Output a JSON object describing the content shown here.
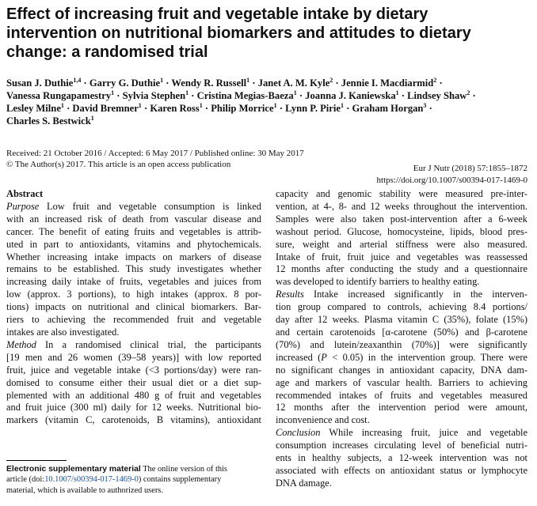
{
  "title": {
    "lines": [
      "Effect of increasing fruit and vegetable intake by dietary",
      "intervention on nutritional biomarkers and attitudes to dietary",
      "change: a randomised trial"
    ]
  },
  "authors": {
    "line1": {
      "a1": "Susan J. Duthie",
      "s1": "1,4",
      "a2": "Garry G. Duthie",
      "s2": "1",
      "a3": "Wendy R. Russell",
      "s3": "1",
      "a4": "Janet A. M. Kyle",
      "s4": "2",
      "a5": "Jennie I. Macdiarmid",
      "s5": "2"
    },
    "line2": {
      "a1": "Vanessa Rungapamestry",
      "s1": "1",
      "a2": "Sylvia Stephen",
      "s2": "1",
      "a3": "Cristina Megias-Baeza",
      "s3": "1",
      "a4": "Joanna J. Kaniewska",
      "s4": "1",
      "a5": "Lindsey Shaw",
      "s5": "2"
    },
    "line3": {
      "a1": "Lesley Milne",
      "s1": "1",
      "a2": "David Bremner",
      "s2": "1",
      "a3": "Karen Ross",
      "s3": "1",
      "a4": "Philip Morrice",
      "s4": "1",
      "a5": "Lynn P. Pirie",
      "s5": "1",
      "a6": "Graham Horgan",
      "s6": "3"
    },
    "line4": {
      "a1": "Charles S. Bestwick",
      "s1": "1"
    },
    "separator": "·"
  },
  "dates": {
    "line1": "Received: 21 October 2016 / Accepted: 6 May 2017 / Published online: 30 May 2017",
    "line2": "© The Author(s) 2017. This article is an open access publication"
  },
  "journal": {
    "citation": "Eur J Nutr (2018) 57:1855–1872",
    "doi": "https://doi.org/10.1007/s00394-017-1469-0"
  },
  "abstract": {
    "heading": "Abstract",
    "purpose_label": "Purpose",
    "method_label": "Method",
    "results_label": "Results",
    "conclusion_label": "Conclusion",
    "left_lines": [
      " Low fruit and vegetable consumption is linked",
      "with an increased risk of death from vascular disease and",
      "cancer. The benefit of eating fruits and vegetables is attrib-",
      "uted in part to antioxidants, vitamins and phytochemicals.",
      "Whether increasing intake impacts on markers of disease",
      "remains to be established. This study investigates whether",
      "increasing daily intake of fruits, vegetables and juices from",
      "low (approx. 3 portions), to high intakes (approx. 8 por-",
      "tions) impacts on nutritional and clinical biomarkers. Bar-",
      "riers to achieving the recommended fruit and vegetable",
      "intakes are also investigated."
    ],
    "method_lines": [
      " In a randomised clinical trial, the participants",
      "[19 men and 26 women (39–58 years)] with low reported",
      "fruit, juice and vegetable intake (<3 portions/day) were ran-",
      "domised to consume either their usual diet or a diet sup-",
      "plemented with an additional 480 g of fruit and vegetables",
      "and fruit juice (300 ml) daily for 12 weeks. Nutritional bio-",
      "markers (vitamin C, carotenoids, B vitamins), antioxidant"
    ],
    "right_lines": [
      "capacity and genomic stability were measured pre-inter-",
      "vention, at 4-, 8- and 12 weeks throughout the intervention.",
      "Samples were also taken post-intervention after a 6-week",
      "washout period. Glucose, homocysteine, lipids, blood pres-",
      "sure, weight and arterial stiffness were also measured.",
      "Intake of fruit, fruit juice and vegetables was reassessed",
      "12 months after conducting the study and a questionnaire",
      "was developed to identify barriers to healthy eating."
    ],
    "results_lines": [
      " Intake increased significantly in the interven-",
      "tion group compared to controls, achieving 8.4 portions/",
      "day after 12 weeks. Plasma vitamin C (35%), folate (15%)",
      "and certain carotenoids [α-carotene (50%) and β-carotene",
      "(70%) and lutein/zeaxanthin (70%)] were significantly",
      "increased (",
      "no significant changes in antioxidant capacity, DNA dam-",
      "age and markers of vascular health. Barriers to achieving",
      "recommended intakes of fruits and vegetables measured",
      "12 months after the intervention period were amount,",
      "inconvenience and cost."
    ],
    "results_p_value": "P",
    "results_line6_rest": " < 0.05) in the intervention group. There were",
    "conclusion_lines": [
      " While increasing fruit, juice and vegetable",
      "consumption increases circulating level of beneficial nutri-",
      "ents in healthy subjects, a 12-week intervention was not",
      "associated with effects on antioxidant status or lymphocyte",
      "DNA damage."
    ]
  },
  "footnote": {
    "label": "Electronic supplementary material",
    "line1_rest": " The online version of this",
    "line2_pre": "article (doi:",
    "doi": "10.1007/s00394-017-1469-0",
    "line2_post": ") contains supplementary",
    "line3": "material, which is available to authorized users."
  }
}
